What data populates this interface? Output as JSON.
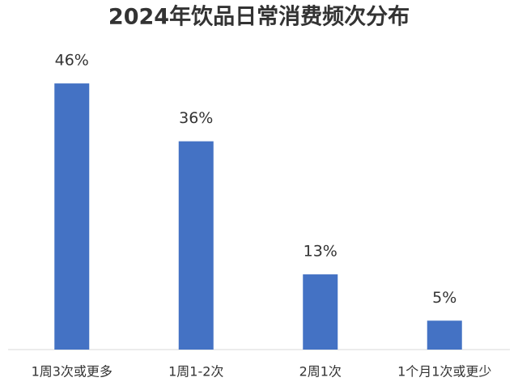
{
  "chart_data": {
    "type": "bar",
    "title": "2024年饮品日常消费频次分布",
    "categories": [
      "1周3次或更多",
      "1周1-2次",
      "2周1次",
      "1个月1次或更少"
    ],
    "values": [
      46,
      36,
      13,
      5
    ],
    "value_labels": [
      "46%",
      "36%",
      "13%",
      "5%"
    ],
    "color": "#4472c4"
  }
}
